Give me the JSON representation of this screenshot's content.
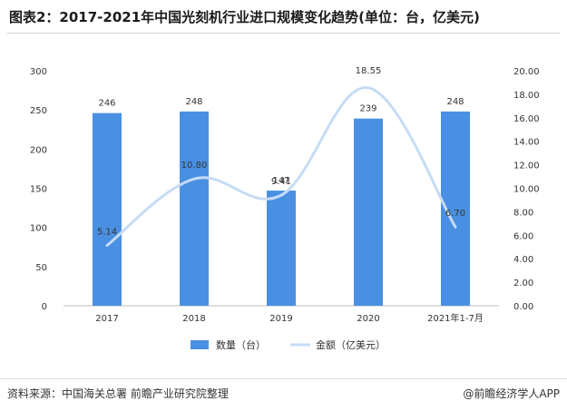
{
  "title": "图表2：2017-2021年中国光刻机行业进口规模变化趋势(单位：台，亿美元)",
  "footer": {
    "source": "资料来源：中国海关总署 前瞻产业研究院整理",
    "brand": "@前瞻经济学人APP"
  },
  "colors": {
    "bar": "#4a90e2",
    "line": "#c6dcf5"
  },
  "chart_data": {
    "type": "bar",
    "categories": [
      "2017",
      "2018",
      "2019",
      "2020",
      "2021年1-7月"
    ],
    "series": [
      {
        "name": "数量（台）",
        "type": "bar",
        "axis": "left",
        "values": [
          246,
          248,
          147,
          239,
          248
        ]
      },
      {
        "name": "金额（亿美元）",
        "type": "line",
        "axis": "right",
        "values": [
          5.14,
          10.8,
          9.41,
          18.55,
          6.7
        ]
      }
    ],
    "bar_labels": [
      "246",
      "248",
      "147",
      "239",
      "248"
    ],
    "line_labels": [
      "5.14",
      "10.80",
      "9.41",
      "18.55",
      "6.70"
    ],
    "y_left": {
      "min": 0,
      "max": 300,
      "ticks": [
        "0",
        "50",
        "100",
        "150",
        "200",
        "250",
        "300"
      ]
    },
    "y_right": {
      "min": 0,
      "max": 20,
      "ticks": [
        "0.00",
        "2.00",
        "4.00",
        "6.00",
        "8.00",
        "10.00",
        "12.00",
        "14.00",
        "16.00",
        "18.00",
        "20.00"
      ]
    },
    "legend": {
      "position": "bottom",
      "items": [
        {
          "label": "数量（台）",
          "kind": "bar"
        },
        {
          "label": "金额（亿美元）",
          "kind": "line"
        }
      ]
    },
    "grid": false
  }
}
